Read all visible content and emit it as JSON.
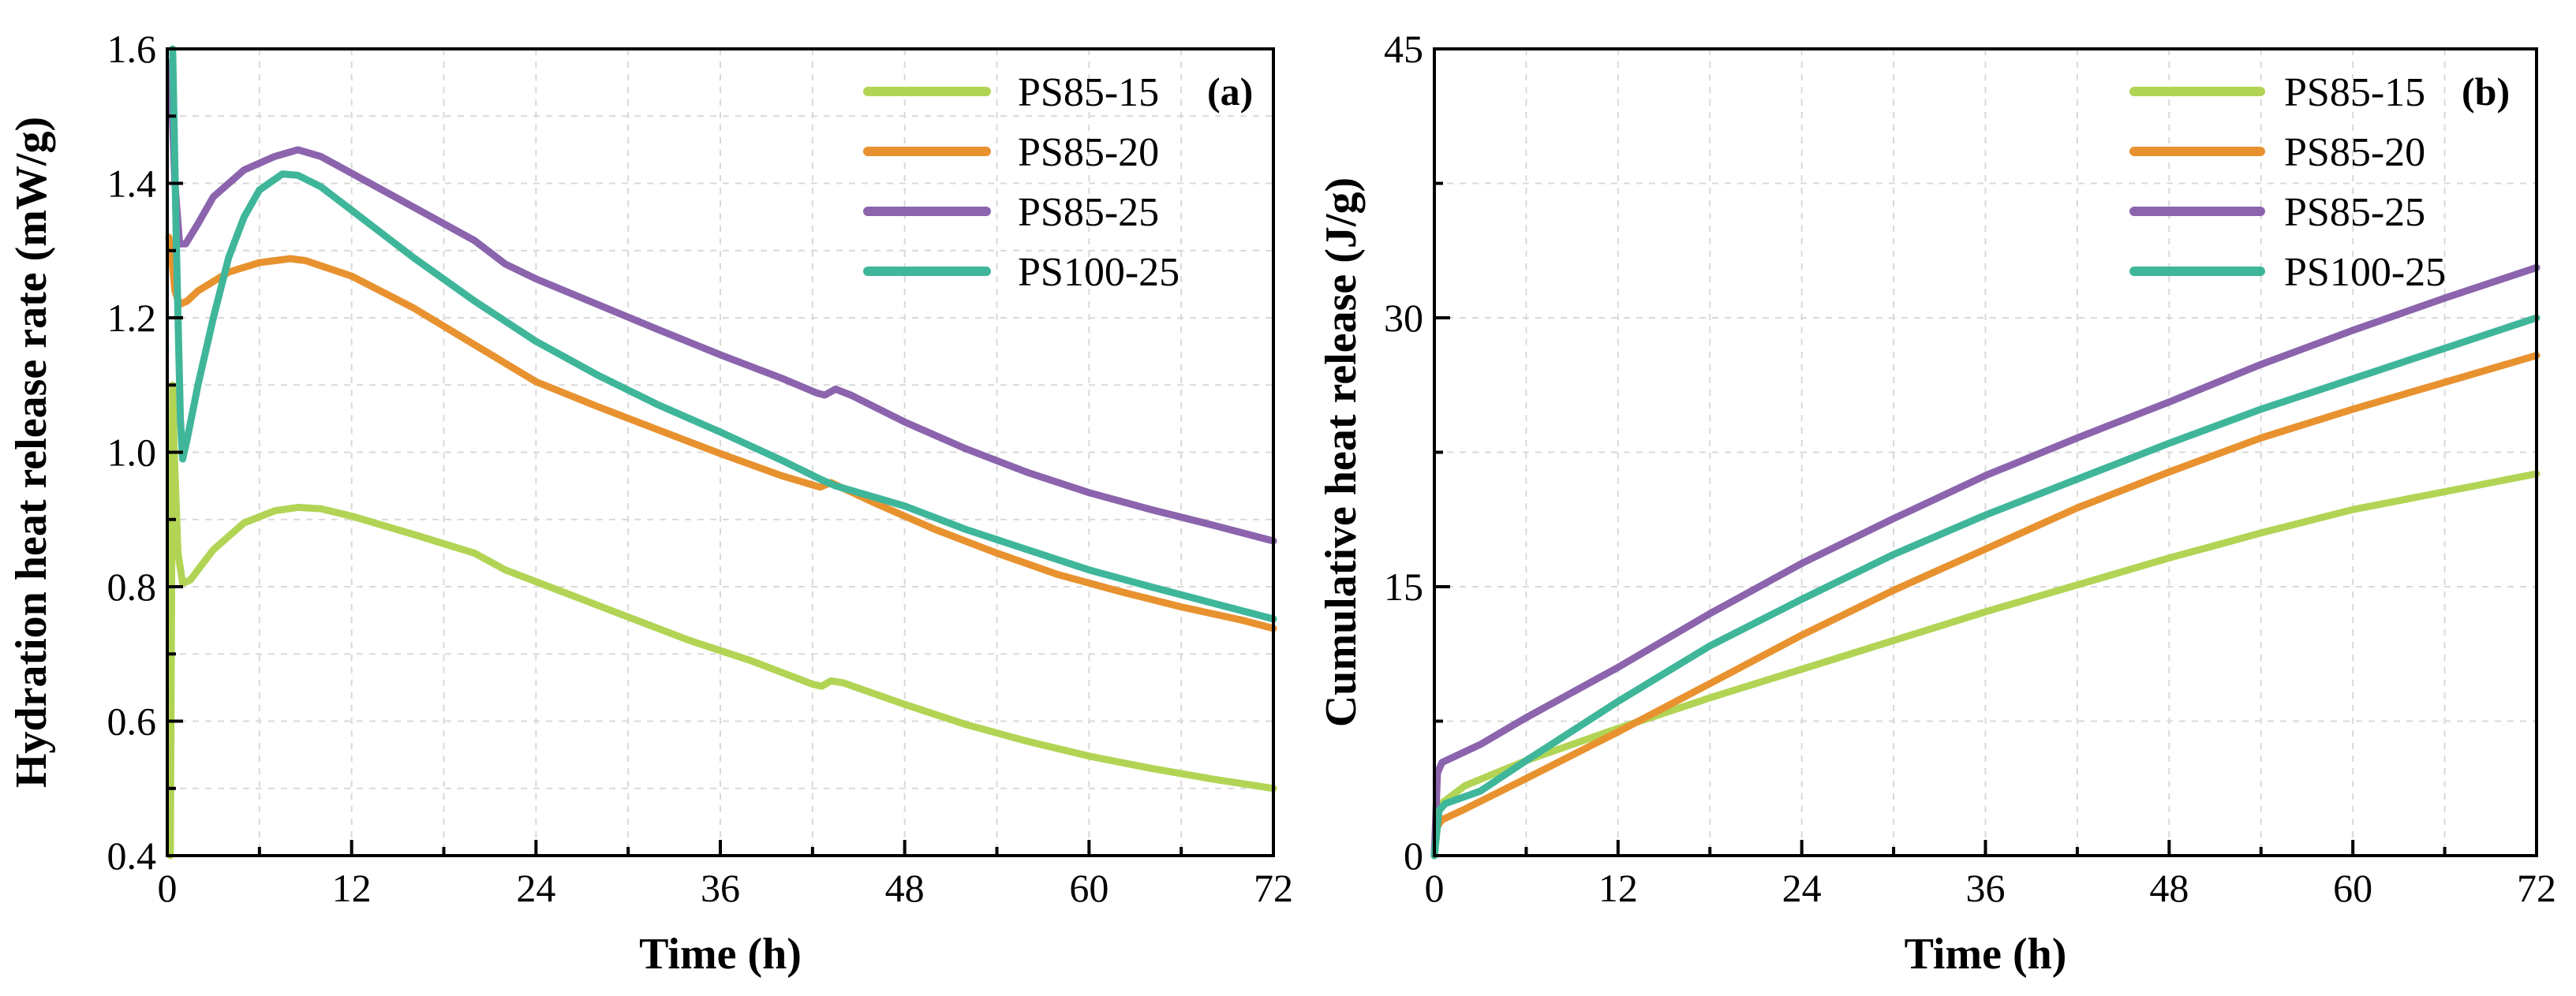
{
  "figure": {
    "panels": [
      "(a)",
      "(b)"
    ]
  },
  "colors": {
    "PS85-15": "#b2d455",
    "PS85-20": "#e8922f",
    "PS85-25": "#8b64ad",
    "PS100-25": "#3fb69a"
  },
  "chart_data": [
    {
      "type": "line",
      "panel_label": "(a)",
      "title": "",
      "xlabel": "Time (h)",
      "ylabel": "Hydration heat release rate (mW/g)",
      "xlim": [
        0,
        72
      ],
      "ylim": [
        0.4,
        1.6
      ],
      "xticks": [
        0,
        12,
        24,
        36,
        48,
        60,
        72
      ],
      "yticks": [
        0.4,
        0.6,
        0.8,
        1.0,
        1.2,
        1.4,
        1.6
      ],
      "xtick_labels": [
        "0",
        "12",
        "24",
        "36",
        "48",
        "60",
        "72"
      ],
      "ytick_labels": [
        "0.4",
        "0.6",
        "0.8",
        "1.0",
        "1.2",
        "1.4",
        "1.6"
      ],
      "grid": true,
      "legend_position": "top-right",
      "series": [
        {
          "name": "PS85-15",
          "points": [
            [
              0.2,
              0.4
            ],
            [
              0.35,
              1.1
            ],
            [
              0.45,
              1.0
            ],
            [
              0.7,
              0.85
            ],
            [
              1.0,
              0.805
            ],
            [
              1.5,
              0.81
            ],
            [
              3,
              0.855
            ],
            [
              5,
              0.895
            ],
            [
              7,
              0.913
            ],
            [
              8.5,
              0.918
            ],
            [
              10,
              0.916
            ],
            [
              12,
              0.905
            ],
            [
              16,
              0.878
            ],
            [
              20,
              0.85
            ],
            [
              22,
              0.825
            ],
            [
              26,
              0.79
            ],
            [
              30,
              0.755
            ],
            [
              34,
              0.72
            ],
            [
              38,
              0.69
            ],
            [
              42,
              0.655
            ],
            [
              42.6,
              0.652
            ],
            [
              43.2,
              0.66
            ],
            [
              44,
              0.657
            ],
            [
              48,
              0.625
            ],
            [
              52,
              0.595
            ],
            [
              56,
              0.57
            ],
            [
              60,
              0.548
            ],
            [
              64,
              0.53
            ],
            [
              68,
              0.514
            ],
            [
              72,
              0.5
            ]
          ]
        },
        {
          "name": "PS85-20",
          "points": [
            [
              0.1,
              1.32
            ],
            [
              0.25,
              1.3
            ],
            [
              0.5,
              1.24
            ],
            [
              0.8,
              1.22
            ],
            [
              1.3,
              1.225
            ],
            [
              2,
              1.24
            ],
            [
              4,
              1.268
            ],
            [
              6,
              1.282
            ],
            [
              8,
              1.288
            ],
            [
              9,
              1.285
            ],
            [
              12,
              1.262
            ],
            [
              16,
              1.215
            ],
            [
              20,
              1.16
            ],
            [
              24,
              1.105
            ],
            [
              28,
              1.068
            ],
            [
              32,
              1.033
            ],
            [
              36,
              0.998
            ],
            [
              40,
              0.965
            ],
            [
              42.5,
              0.948
            ],
            [
              43.2,
              0.955
            ],
            [
              46,
              0.925
            ],
            [
              50,
              0.885
            ],
            [
              54,
              0.85
            ],
            [
              58,
              0.818
            ],
            [
              62,
              0.793
            ],
            [
              66,
              0.77
            ],
            [
              70,
              0.75
            ],
            [
              72,
              0.738
            ]
          ]
        },
        {
          "name": "PS85-25",
          "points": [
            [
              0.2,
              1.58
            ],
            [
              0.5,
              1.4
            ],
            [
              0.8,
              1.31
            ],
            [
              1.2,
              1.31
            ],
            [
              2,
              1.34
            ],
            [
              3,
              1.38
            ],
            [
              5,
              1.42
            ],
            [
              7,
              1.44
            ],
            [
              8.5,
              1.45
            ],
            [
              10,
              1.44
            ],
            [
              12,
              1.415
            ],
            [
              16,
              1.365
            ],
            [
              20,
              1.315
            ],
            [
              22,
              1.28
            ],
            [
              24,
              1.258
            ],
            [
              28,
              1.22
            ],
            [
              32,
              1.182
            ],
            [
              36,
              1.145
            ],
            [
              40,
              1.11
            ],
            [
              42.3,
              1.088
            ],
            [
              42.8,
              1.085
            ],
            [
              43.5,
              1.094
            ],
            [
              44.5,
              1.085
            ],
            [
              48,
              1.045
            ],
            [
              52,
              1.005
            ],
            [
              56,
              0.97
            ],
            [
              60,
              0.94
            ],
            [
              64,
              0.915
            ],
            [
              68,
              0.892
            ],
            [
              72,
              0.868
            ]
          ]
        },
        {
          "name": "PS100-25",
          "points": [
            [
              0.35,
              1.6
            ],
            [
              0.6,
              1.3
            ],
            [
              0.85,
              1.05
            ],
            [
              1.0,
              0.99
            ],
            [
              1.3,
              1.02
            ],
            [
              2,
              1.1
            ],
            [
              3,
              1.2
            ],
            [
              4,
              1.29
            ],
            [
              5,
              1.35
            ],
            [
              6,
              1.39
            ],
            [
              7.5,
              1.414
            ],
            [
              8.5,
              1.412
            ],
            [
              10,
              1.395
            ],
            [
              12,
              1.36
            ],
            [
              16,
              1.29
            ],
            [
              20,
              1.225
            ],
            [
              24,
              1.165
            ],
            [
              28,
              1.115
            ],
            [
              32,
              1.07
            ],
            [
              36,
              1.03
            ],
            [
              40,
              0.988
            ],
            [
              42.5,
              0.96
            ],
            [
              43.5,
              0.95
            ],
            [
              48,
              0.92
            ],
            [
              52,
              0.885
            ],
            [
              56,
              0.855
            ],
            [
              60,
              0.825
            ],
            [
              64,
              0.8
            ],
            [
              68,
              0.776
            ],
            [
              72,
              0.752
            ]
          ]
        }
      ]
    },
    {
      "type": "line",
      "panel_label": "(b)",
      "title": "",
      "xlabel": "Time (h)",
      "ylabel": "Cumulative heat release (J/g)",
      "xlim": [
        0,
        72
      ],
      "ylim": [
        0,
        45
      ],
      "xticks": [
        0,
        12,
        24,
        36,
        48,
        60,
        72
      ],
      "yticks": [
        0,
        15,
        30,
        45
      ],
      "xtick_labels": [
        "0",
        "12",
        "24",
        "36",
        "48",
        "60",
        "72"
      ],
      "ytick_labels": [
        "0",
        "15",
        "30",
        "45"
      ],
      "grid": true,
      "legend_position": "top-right",
      "series": [
        {
          "name": "PS85-15",
          "points": [
            [
              0,
              0
            ],
            [
              0.3,
              2.5
            ],
            [
              0.6,
              3.0
            ],
            [
              2,
              3.9
            ],
            [
              6,
              5.3
            ],
            [
              12,
              7.1
            ],
            [
              18,
              8.8
            ],
            [
              24,
              10.4
            ],
            [
              30,
              12.0
            ],
            [
              36,
              13.6
            ],
            [
              42,
              15.1
            ],
            [
              48,
              16.6
            ],
            [
              54,
              18.0
            ],
            [
              60,
              19.3
            ],
            [
              66,
              20.3
            ],
            [
              72,
              21.3
            ]
          ]
        },
        {
          "name": "PS85-20",
          "points": [
            [
              0,
              0
            ],
            [
              0.1,
              1.5
            ],
            [
              0.5,
              2.0
            ],
            [
              2,
              2.6
            ],
            [
              6,
              4.3
            ],
            [
              12,
              6.9
            ],
            [
              18,
              9.6
            ],
            [
              24,
              12.3
            ],
            [
              30,
              14.8
            ],
            [
              36,
              17.1
            ],
            [
              42,
              19.4
            ],
            [
              48,
              21.4
            ],
            [
              54,
              23.3
            ],
            [
              60,
              24.9
            ],
            [
              66,
              26.4
            ],
            [
              72,
              27.9
            ]
          ]
        },
        {
          "name": "PS85-25",
          "points": [
            [
              0,
              0
            ],
            [
              0.2,
              4.6
            ],
            [
              0.5,
              5.2
            ],
            [
              3,
              6.2
            ],
            [
              6,
              7.7
            ],
            [
              12,
              10.5
            ],
            [
              18,
              13.5
            ],
            [
              24,
              16.3
            ],
            [
              30,
              18.8
            ],
            [
              36,
              21.2
            ],
            [
              42,
              23.3
            ],
            [
              48,
              25.3
            ],
            [
              54,
              27.4
            ],
            [
              60,
              29.3
            ],
            [
              66,
              31.1
            ],
            [
              72,
              32.8
            ]
          ]
        },
        {
          "name": "PS100-25",
          "points": [
            [
              0,
              0
            ],
            [
              0.3,
              2.5
            ],
            [
              0.7,
              2.9
            ],
            [
              3,
              3.6
            ],
            [
              6,
              5.3
            ],
            [
              12,
              8.6
            ],
            [
              18,
              11.7
            ],
            [
              24,
              14.3
            ],
            [
              30,
              16.8
            ],
            [
              36,
              19.0
            ],
            [
              42,
              21.0
            ],
            [
              48,
              23.0
            ],
            [
              54,
              24.9
            ],
            [
              60,
              26.6
            ],
            [
              66,
              28.3
            ],
            [
              72,
              30.0
            ]
          ]
        }
      ]
    }
  ]
}
